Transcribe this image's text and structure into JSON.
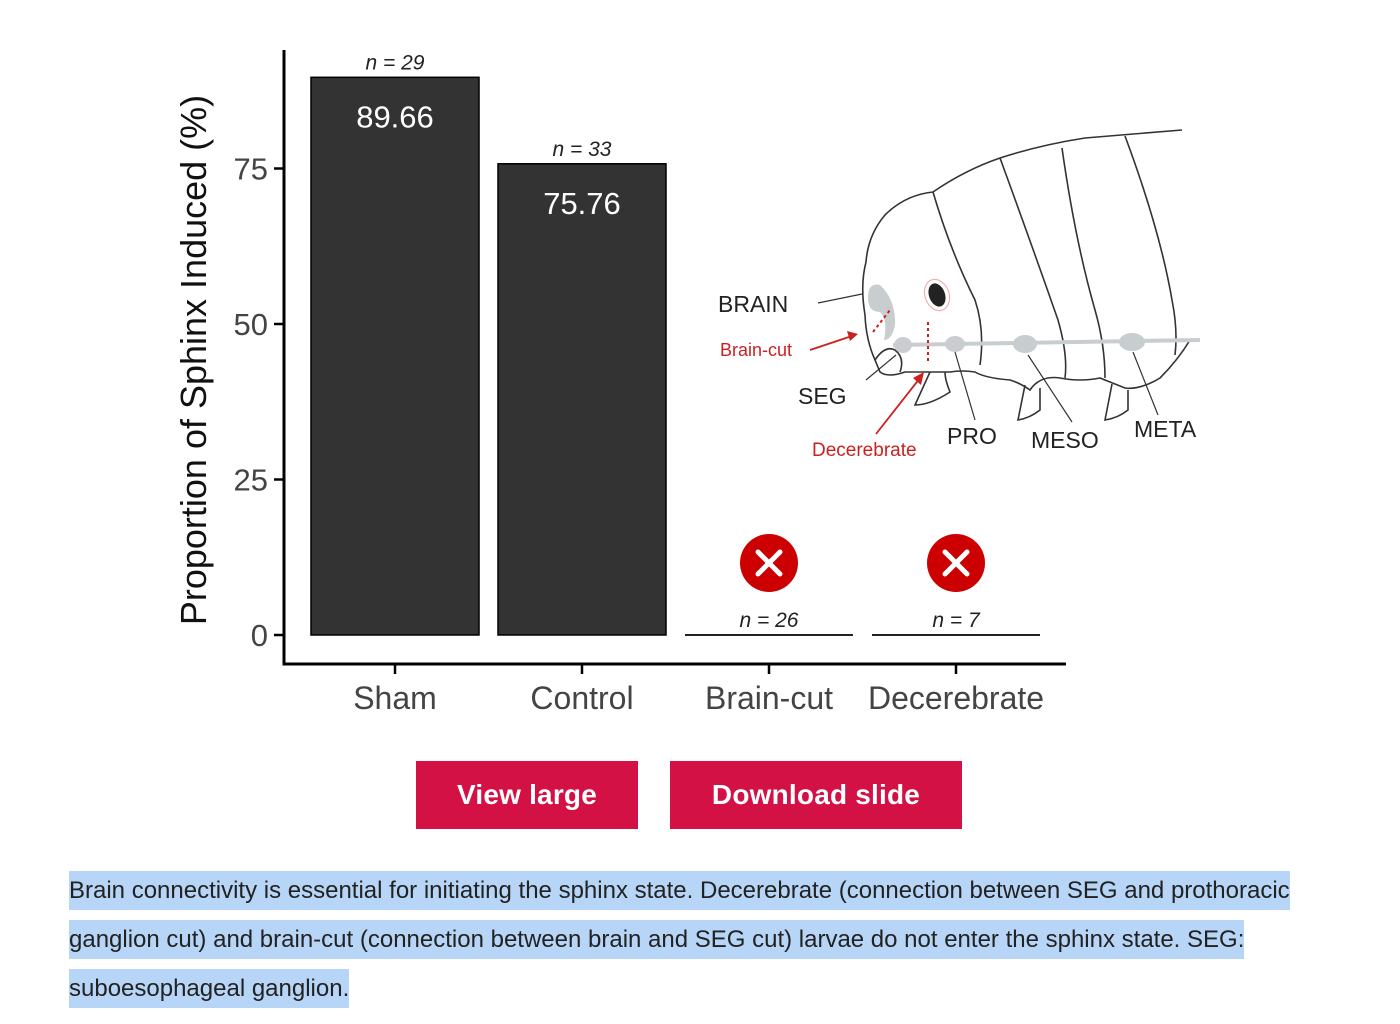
{
  "chart_data": {
    "type": "bar",
    "categories": [
      "Sham",
      "Control",
      "Brain-cut",
      "Decerebrate"
    ],
    "values": [
      89.66,
      75.76,
      0,
      0
    ],
    "value_labels": [
      "89.66",
      "75.76",
      "",
      ""
    ],
    "n_labels": [
      "n = 29",
      "n = 33",
      "n = 26",
      "n = 7"
    ],
    "ylabel": "Proportion of Sphinx Induced (%)",
    "xlabel": "",
    "ylim": [
      0,
      93
    ],
    "yticks": [
      0,
      25,
      50,
      75
    ],
    "grid": false,
    "bar_color": "#333333",
    "x_marker_color": "#cc0000",
    "x_marker_on": [
      "Brain-cut",
      "Decerebrate"
    ]
  },
  "diagram": {
    "labels": {
      "brain": "BRAIN",
      "brain_cut": "Brain-cut",
      "seg": "SEG",
      "decerebrate": "Decerebrate",
      "pro": "PRO",
      "meso": "MESO",
      "meta": "META"
    },
    "red_color": "#cc1f1f"
  },
  "buttons": {
    "view_large": "View large",
    "download_slide": "Download slide"
  },
  "colors": {
    "button_bg": "#d31145",
    "selection_highlight": "#b7d6f7"
  },
  "caption": "Brain connectivity is essential for initiating the sphinx state. Decerebrate (connection between SEG and prothoracic ganglion cut) and brain-cut (connection between brain and SEG cut) larvae do not enter the sphinx state. SEG: suboesophageal ganglion."
}
